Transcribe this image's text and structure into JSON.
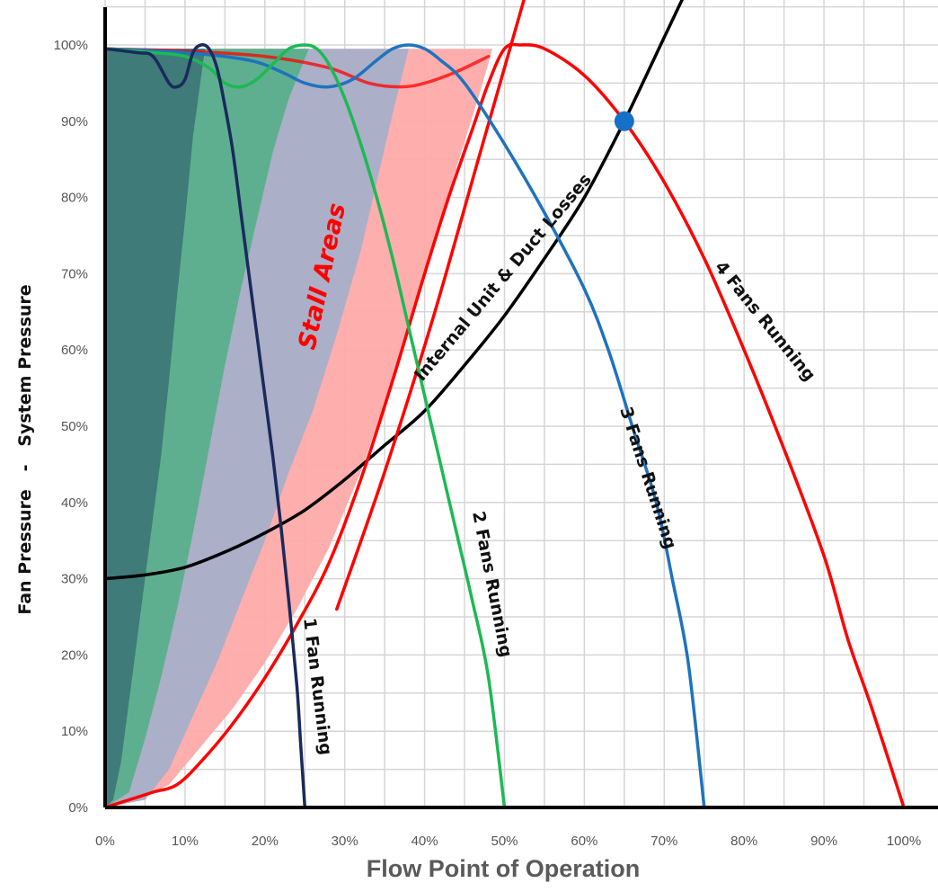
{
  "chart_data": {
    "type": "line",
    "ylabel": "Fan Pressure   -   System Pressure",
    "xlabel": "Flow Point of Operation",
    "xlim": [
      0,
      100
    ],
    "ylim": [
      0,
      100
    ],
    "x_ticks": [
      0,
      10,
      20,
      30,
      40,
      50,
      60,
      70,
      80,
      90,
      100
    ],
    "y_ticks": [
      0,
      10,
      20,
      30,
      40,
      50,
      60,
      70,
      80,
      90,
      100
    ],
    "tick_suffix": "%",
    "grid": true,
    "colors": {
      "one_fan": "#1a2a5c",
      "two_fans": "#1db954",
      "three_fans": "#1e73be",
      "four_fans": "#ff0000",
      "system": "#000000",
      "operating_point": "#1670c8",
      "stall_1": "#3d7878",
      "stall_2": "#5aaf8c",
      "stall_3": "#a7afc8",
      "stall_4": "#ffaaaa"
    },
    "series": [
      {
        "key": "one_fan",
        "name": "1 Fan Running",
        "points": [
          [
            0,
            99.5
          ],
          [
            4,
            99
          ],
          [
            6,
            98.5
          ],
          [
            8,
            95
          ],
          [
            9,
            94.5
          ],
          [
            10,
            95.5
          ],
          [
            11,
            99
          ],
          [
            12,
            100
          ],
          [
            13,
            99.5
          ],
          [
            14,
            97
          ],
          [
            15,
            92
          ],
          [
            16,
            86
          ],
          [
            17,
            78
          ],
          [
            18,
            70
          ],
          [
            19,
            62
          ],
          [
            20,
            54
          ],
          [
            21,
            46
          ],
          [
            22,
            37
          ],
          [
            23,
            27
          ],
          [
            24,
            16
          ],
          [
            24.5,
            8
          ],
          [
            25,
            0
          ]
        ]
      },
      {
        "key": "two_fans",
        "name": "2 Fans Running",
        "points": [
          [
            0,
            99.5
          ],
          [
            6,
            99
          ],
          [
            10,
            98.5
          ],
          [
            13,
            97
          ],
          [
            15,
            95
          ],
          [
            17,
            94.5
          ],
          [
            19,
            95.5
          ],
          [
            21,
            97.5
          ],
          [
            23,
            99.5
          ],
          [
            25,
            100
          ],
          [
            26.5,
            99.5
          ],
          [
            28,
            97.5
          ],
          [
            30,
            93
          ],
          [
            32,
            87
          ],
          [
            34,
            80
          ],
          [
            36,
            72
          ],
          [
            38,
            63
          ],
          [
            40,
            54
          ],
          [
            42,
            45
          ],
          [
            44,
            36
          ],
          [
            46,
            27
          ],
          [
            48,
            17
          ],
          [
            50,
            0
          ]
        ]
      },
      {
        "key": "three_fans",
        "name": "3 Fans Running",
        "points": [
          [
            0,
            99.5
          ],
          [
            10,
            99
          ],
          [
            18,
            98
          ],
          [
            22,
            96.5
          ],
          [
            25,
            95
          ],
          [
            28,
            94.5
          ],
          [
            31,
            95.5
          ],
          [
            34,
            98
          ],
          [
            36,
            99.5
          ],
          [
            38,
            100
          ],
          [
            40,
            99.5
          ],
          [
            42,
            98
          ],
          [
            45,
            95
          ],
          [
            50,
            87
          ],
          [
            55,
            78
          ],
          [
            60,
            68
          ],
          [
            63,
            60
          ],
          [
            66,
            50
          ],
          [
            69,
            40
          ],
          [
            71,
            30
          ],
          [
            73,
            19
          ],
          [
            75,
            0
          ]
        ]
      },
      {
        "key": "four_fans",
        "name": "4 Fans Running",
        "points": [
          [
            0,
            0
          ],
          [
            3,
            1
          ],
          [
            6,
            2
          ],
          [
            9,
            3
          ],
          [
            12,
            6
          ],
          [
            16,
            11
          ],
          [
            20,
            17
          ],
          [
            24,
            24
          ],
          [
            28,
            32
          ],
          [
            32,
            43
          ],
          [
            36,
            56
          ],
          [
            40,
            70
          ],
          [
            43,
            80
          ],
          [
            46,
            89
          ],
          [
            48,
            95
          ],
          [
            50,
            99.5
          ],
          [
            52,
            100
          ],
          [
            55,
            99.5
          ],
          [
            60,
            96
          ],
          [
            65,
            90
          ],
          [
            70,
            82
          ],
          [
            75,
            72
          ],
          [
            80,
            60
          ],
          [
            85,
            47
          ],
          [
            90,
            33
          ],
          [
            93,
            22
          ],
          [
            96,
            13
          ],
          [
            100,
            0
          ]
        ]
      },
      {
        "key": "four_fans_upper",
        "name": "",
        "points": [
          [
            0,
            99.5
          ],
          [
            10,
            99.2
          ],
          [
            20,
            98.5
          ],
          [
            28,
            97
          ],
          [
            33,
            95
          ],
          [
            37,
            94.5
          ],
          [
            40,
            95
          ],
          [
            44,
            96.5
          ],
          [
            48,
            98.5
          ]
        ]
      },
      {
        "key": "system",
        "name": "Internal Unit & Duct Losses",
        "points": [
          [
            0,
            30
          ],
          [
            5,
            30.5
          ],
          [
            10,
            31.5
          ],
          [
            15,
            33.5
          ],
          [
            20,
            36
          ],
          [
            25,
            39
          ],
          [
            30,
            43
          ],
          [
            35,
            47.5
          ],
          [
            40,
            52
          ],
          [
            45,
            58
          ],
          [
            50,
            64.5
          ],
          [
            55,
            72
          ],
          [
            60,
            80
          ],
          [
            65,
            90
          ],
          [
            70,
            101
          ],
          [
            75,
            112
          ]
        ]
      },
      {
        "key": "surge_line",
        "name": "",
        "points": [
          [
            29,
            26
          ],
          [
            35,
            44
          ],
          [
            41,
            64
          ],
          [
            47,
            86
          ],
          [
            53,
            108
          ]
        ]
      }
    ],
    "stall_areas": [
      {
        "key": "stall_4",
        "boundary": [
          [
            0,
            0
          ],
          [
            4,
            1
          ],
          [
            8,
            3
          ],
          [
            12,
            8
          ],
          [
            16,
            13
          ],
          [
            20,
            19
          ],
          [
            24,
            26
          ],
          [
            28,
            34
          ],
          [
            32,
            44
          ],
          [
            36,
            56
          ],
          [
            40,
            70
          ],
          [
            44,
            84
          ],
          [
            47,
            94
          ],
          [
            48.5,
            99.5
          ],
          [
            0,
            99.5
          ]
        ]
      },
      {
        "key": "stall_3",
        "boundary": [
          [
            0,
            0
          ],
          [
            5,
            1
          ],
          [
            8,
            5
          ],
          [
            11,
            12
          ],
          [
            14,
            19
          ],
          [
            17,
            27
          ],
          [
            20,
            35
          ],
          [
            23,
            44
          ],
          [
            26,
            52
          ],
          [
            29,
            62
          ],
          [
            32,
            73
          ],
          [
            34,
            82
          ],
          [
            36,
            91
          ],
          [
            38,
            99.5
          ],
          [
            0,
            99.5
          ]
        ]
      },
      {
        "key": "stall_2",
        "boundary": [
          [
            0,
            0
          ],
          [
            3,
            2
          ],
          [
            5,
            9
          ],
          [
            7,
            17
          ],
          [
            9,
            26
          ],
          [
            11,
            36
          ],
          [
            13,
            47
          ],
          [
            15,
            58
          ],
          [
            17,
            68
          ],
          [
            19,
            77
          ],
          [
            21,
            86
          ],
          [
            23,
            93
          ],
          [
            25.5,
            99.5
          ],
          [
            0,
            99.5
          ]
        ]
      },
      {
        "key": "stall_1",
        "boundary": [
          [
            0,
            0
          ],
          [
            1,
            1
          ],
          [
            2,
            6
          ],
          [
            3,
            14
          ],
          [
            4,
            22
          ],
          [
            5,
            30
          ],
          [
            6,
            38
          ],
          [
            7,
            46
          ],
          [
            8,
            56
          ],
          [
            9,
            67
          ],
          [
            10,
            77
          ],
          [
            11,
            88
          ],
          [
            12.5,
            99.5
          ],
          [
            0,
            99.5
          ]
        ]
      }
    ],
    "operating_point": {
      "x": 65,
      "y": 90
    },
    "annotations": {
      "stall": "Stall Areas",
      "one_fan": "1 Fan Running",
      "two_fans": "2 Fans Running",
      "three_fans": "3 Fans Running",
      "four_fans": "4 Fans Running",
      "system": "Internal Unit & Duct Losses"
    }
  }
}
